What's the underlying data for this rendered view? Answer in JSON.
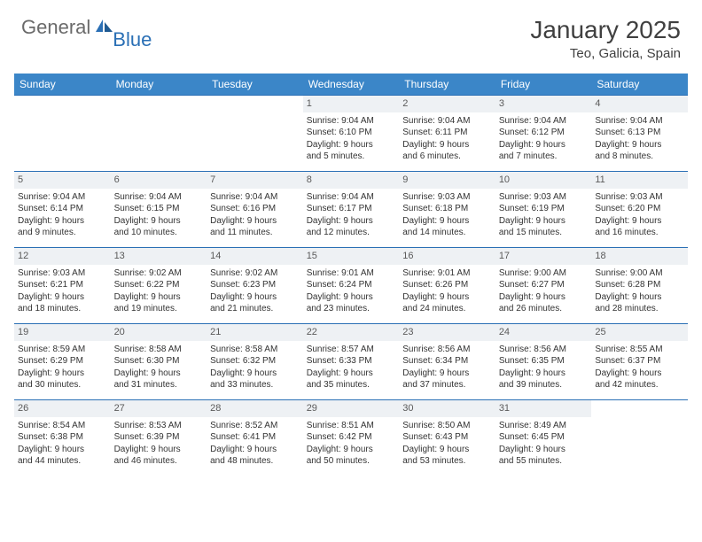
{
  "logo": {
    "part1": "General",
    "part2": "Blue"
  },
  "title": "January 2025",
  "location": "Teo, Galicia, Spain",
  "colors": {
    "header_bg": "#3b86c8",
    "border": "#2a6fb5",
    "daynum_bg": "#eef1f4",
    "text": "#333333",
    "title_text": "#404040",
    "logo_gray": "#6a6a6a",
    "logo_blue": "#2a6fb5"
  },
  "day_headers": [
    "Sunday",
    "Monday",
    "Tuesday",
    "Wednesday",
    "Thursday",
    "Friday",
    "Saturday"
  ],
  "weeks": [
    [
      null,
      null,
      null,
      {
        "n": "1",
        "sr": "Sunrise: 9:04 AM",
        "ss": "Sunset: 6:10 PM",
        "d1": "Daylight: 9 hours",
        "d2": "and 5 minutes."
      },
      {
        "n": "2",
        "sr": "Sunrise: 9:04 AM",
        "ss": "Sunset: 6:11 PM",
        "d1": "Daylight: 9 hours",
        "d2": "and 6 minutes."
      },
      {
        "n": "3",
        "sr": "Sunrise: 9:04 AM",
        "ss": "Sunset: 6:12 PM",
        "d1": "Daylight: 9 hours",
        "d2": "and 7 minutes."
      },
      {
        "n": "4",
        "sr": "Sunrise: 9:04 AM",
        "ss": "Sunset: 6:13 PM",
        "d1": "Daylight: 9 hours",
        "d2": "and 8 minutes."
      }
    ],
    [
      {
        "n": "5",
        "sr": "Sunrise: 9:04 AM",
        "ss": "Sunset: 6:14 PM",
        "d1": "Daylight: 9 hours",
        "d2": "and 9 minutes."
      },
      {
        "n": "6",
        "sr": "Sunrise: 9:04 AM",
        "ss": "Sunset: 6:15 PM",
        "d1": "Daylight: 9 hours",
        "d2": "and 10 minutes."
      },
      {
        "n": "7",
        "sr": "Sunrise: 9:04 AM",
        "ss": "Sunset: 6:16 PM",
        "d1": "Daylight: 9 hours",
        "d2": "and 11 minutes."
      },
      {
        "n": "8",
        "sr": "Sunrise: 9:04 AM",
        "ss": "Sunset: 6:17 PM",
        "d1": "Daylight: 9 hours",
        "d2": "and 12 minutes."
      },
      {
        "n": "9",
        "sr": "Sunrise: 9:03 AM",
        "ss": "Sunset: 6:18 PM",
        "d1": "Daylight: 9 hours",
        "d2": "and 14 minutes."
      },
      {
        "n": "10",
        "sr": "Sunrise: 9:03 AM",
        "ss": "Sunset: 6:19 PM",
        "d1": "Daylight: 9 hours",
        "d2": "and 15 minutes."
      },
      {
        "n": "11",
        "sr": "Sunrise: 9:03 AM",
        "ss": "Sunset: 6:20 PM",
        "d1": "Daylight: 9 hours",
        "d2": "and 16 minutes."
      }
    ],
    [
      {
        "n": "12",
        "sr": "Sunrise: 9:03 AM",
        "ss": "Sunset: 6:21 PM",
        "d1": "Daylight: 9 hours",
        "d2": "and 18 minutes."
      },
      {
        "n": "13",
        "sr": "Sunrise: 9:02 AM",
        "ss": "Sunset: 6:22 PM",
        "d1": "Daylight: 9 hours",
        "d2": "and 19 minutes."
      },
      {
        "n": "14",
        "sr": "Sunrise: 9:02 AM",
        "ss": "Sunset: 6:23 PM",
        "d1": "Daylight: 9 hours",
        "d2": "and 21 minutes."
      },
      {
        "n": "15",
        "sr": "Sunrise: 9:01 AM",
        "ss": "Sunset: 6:24 PM",
        "d1": "Daylight: 9 hours",
        "d2": "and 23 minutes."
      },
      {
        "n": "16",
        "sr": "Sunrise: 9:01 AM",
        "ss": "Sunset: 6:26 PM",
        "d1": "Daylight: 9 hours",
        "d2": "and 24 minutes."
      },
      {
        "n": "17",
        "sr": "Sunrise: 9:00 AM",
        "ss": "Sunset: 6:27 PM",
        "d1": "Daylight: 9 hours",
        "d2": "and 26 minutes."
      },
      {
        "n": "18",
        "sr": "Sunrise: 9:00 AM",
        "ss": "Sunset: 6:28 PM",
        "d1": "Daylight: 9 hours",
        "d2": "and 28 minutes."
      }
    ],
    [
      {
        "n": "19",
        "sr": "Sunrise: 8:59 AM",
        "ss": "Sunset: 6:29 PM",
        "d1": "Daylight: 9 hours",
        "d2": "and 30 minutes."
      },
      {
        "n": "20",
        "sr": "Sunrise: 8:58 AM",
        "ss": "Sunset: 6:30 PM",
        "d1": "Daylight: 9 hours",
        "d2": "and 31 minutes."
      },
      {
        "n": "21",
        "sr": "Sunrise: 8:58 AM",
        "ss": "Sunset: 6:32 PM",
        "d1": "Daylight: 9 hours",
        "d2": "and 33 minutes."
      },
      {
        "n": "22",
        "sr": "Sunrise: 8:57 AM",
        "ss": "Sunset: 6:33 PM",
        "d1": "Daylight: 9 hours",
        "d2": "and 35 minutes."
      },
      {
        "n": "23",
        "sr": "Sunrise: 8:56 AM",
        "ss": "Sunset: 6:34 PM",
        "d1": "Daylight: 9 hours",
        "d2": "and 37 minutes."
      },
      {
        "n": "24",
        "sr": "Sunrise: 8:56 AM",
        "ss": "Sunset: 6:35 PM",
        "d1": "Daylight: 9 hours",
        "d2": "and 39 minutes."
      },
      {
        "n": "25",
        "sr": "Sunrise: 8:55 AM",
        "ss": "Sunset: 6:37 PM",
        "d1": "Daylight: 9 hours",
        "d2": "and 42 minutes."
      }
    ],
    [
      {
        "n": "26",
        "sr": "Sunrise: 8:54 AM",
        "ss": "Sunset: 6:38 PM",
        "d1": "Daylight: 9 hours",
        "d2": "and 44 minutes."
      },
      {
        "n": "27",
        "sr": "Sunrise: 8:53 AM",
        "ss": "Sunset: 6:39 PM",
        "d1": "Daylight: 9 hours",
        "d2": "and 46 minutes."
      },
      {
        "n": "28",
        "sr": "Sunrise: 8:52 AM",
        "ss": "Sunset: 6:41 PM",
        "d1": "Daylight: 9 hours",
        "d2": "and 48 minutes."
      },
      {
        "n": "29",
        "sr": "Sunrise: 8:51 AM",
        "ss": "Sunset: 6:42 PM",
        "d1": "Daylight: 9 hours",
        "d2": "and 50 minutes."
      },
      {
        "n": "30",
        "sr": "Sunrise: 8:50 AM",
        "ss": "Sunset: 6:43 PM",
        "d1": "Daylight: 9 hours",
        "d2": "and 53 minutes."
      },
      {
        "n": "31",
        "sr": "Sunrise: 8:49 AM",
        "ss": "Sunset: 6:45 PM",
        "d1": "Daylight: 9 hours",
        "d2": "and 55 minutes."
      },
      null
    ]
  ]
}
